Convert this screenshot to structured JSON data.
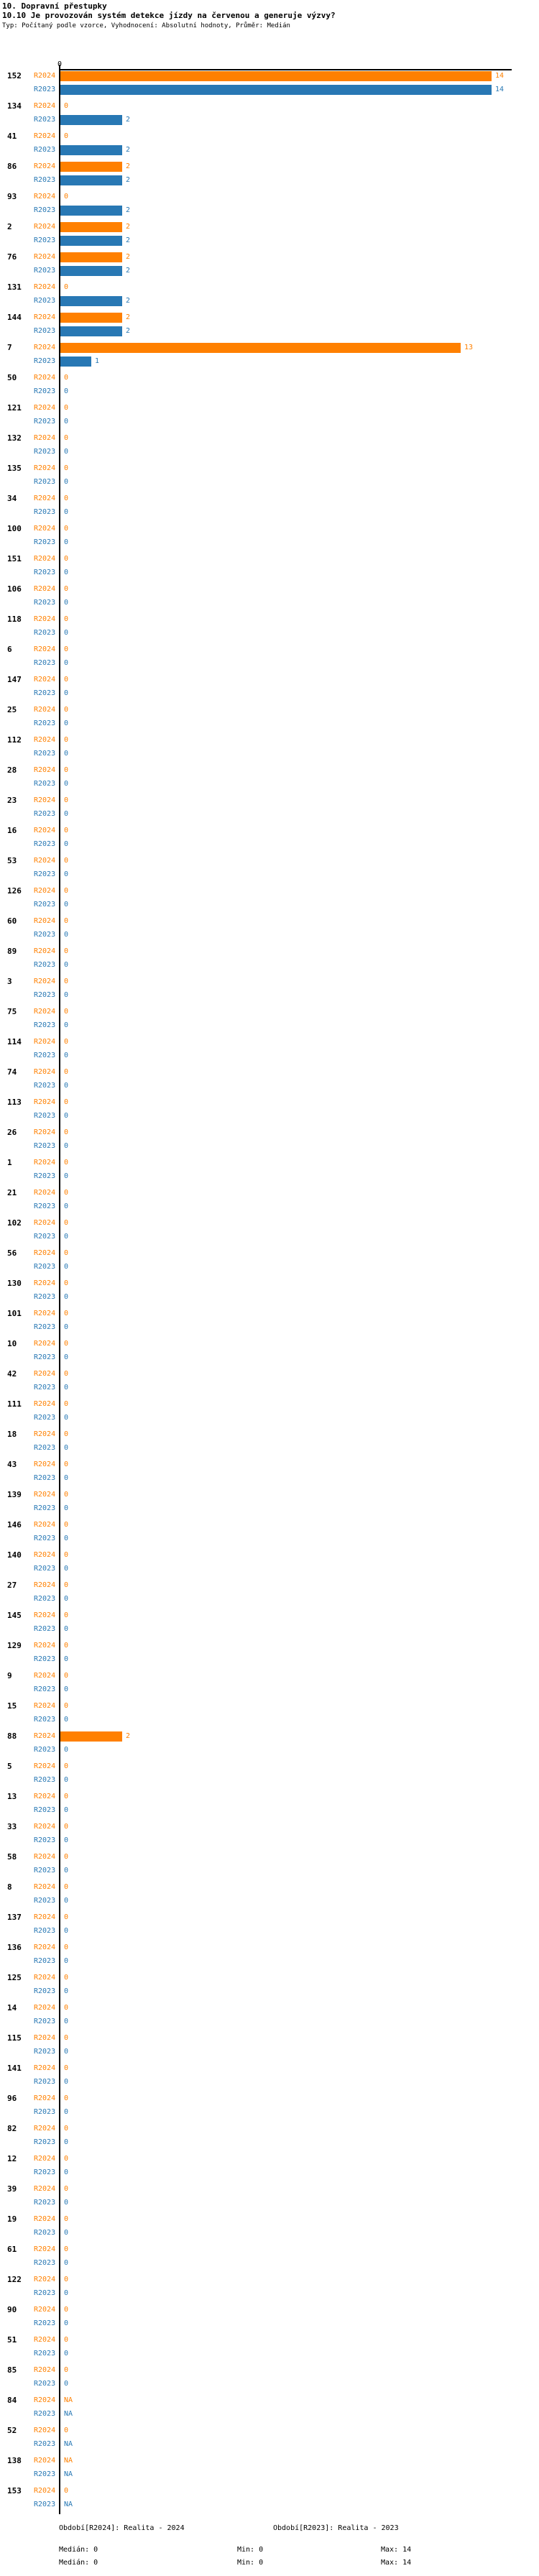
{
  "header": {
    "section_title": "10. Dopravní přestupky",
    "question_title": "10.10 Je provozován systém detekce jízdy na červenou a generuje výzvy?",
    "subtitle": "Typ: Počítaný podle vzorce, Vyhodnocení: Absolutní hodnoty, Průměr: Medián"
  },
  "chart_data": {
    "type": "bar",
    "orientation": "horizontal",
    "x_axis": {
      "zero_tick_label": "0",
      "min": 0,
      "max": 14,
      "grid": false
    },
    "series": [
      {
        "name": "R2024",
        "color": "#FF8000"
      },
      {
        "name": "R2023",
        "color": "#2878B4"
      }
    ],
    "rows": [
      {
        "id": "152",
        "R2024": 14,
        "R2023": 14
      },
      {
        "id": "134",
        "R2024": 0,
        "R2023": 2
      },
      {
        "id": "41",
        "R2024": 0,
        "R2023": 2
      },
      {
        "id": "86",
        "R2024": 2,
        "R2023": 2
      },
      {
        "id": "93",
        "R2024": 0,
        "R2023": 2
      },
      {
        "id": "2",
        "R2024": 2,
        "R2023": 2
      },
      {
        "id": "76",
        "R2024": 2,
        "R2023": 2
      },
      {
        "id": "131",
        "R2024": 0,
        "R2023": 2
      },
      {
        "id": "144",
        "R2024": 2,
        "R2023": 2
      },
      {
        "id": "7",
        "R2024": 13,
        "R2023": 1
      },
      {
        "id": "50",
        "R2024": 0,
        "R2023": 0
      },
      {
        "id": "121",
        "R2024": 0,
        "R2023": 0
      },
      {
        "id": "132",
        "R2024": 0,
        "R2023": 0
      },
      {
        "id": "135",
        "R2024": 0,
        "R2023": 0
      },
      {
        "id": "34",
        "R2024": 0,
        "R2023": 0
      },
      {
        "id": "100",
        "R2024": 0,
        "R2023": 0
      },
      {
        "id": "151",
        "R2024": 0,
        "R2023": 0
      },
      {
        "id": "106",
        "R2024": 0,
        "R2023": 0
      },
      {
        "id": "118",
        "R2024": 0,
        "R2023": 0
      },
      {
        "id": "6",
        "R2024": 0,
        "R2023": 0
      },
      {
        "id": "147",
        "R2024": 0,
        "R2023": 0
      },
      {
        "id": "25",
        "R2024": 0,
        "R2023": 0
      },
      {
        "id": "112",
        "R2024": 0,
        "R2023": 0
      },
      {
        "id": "28",
        "R2024": 0,
        "R2023": 0
      },
      {
        "id": "23",
        "R2024": 0,
        "R2023": 0
      },
      {
        "id": "16",
        "R2024": 0,
        "R2023": 0
      },
      {
        "id": "53",
        "R2024": 0,
        "R2023": 0
      },
      {
        "id": "126",
        "R2024": 0,
        "R2023": 0
      },
      {
        "id": "60",
        "R2024": 0,
        "R2023": 0
      },
      {
        "id": "89",
        "R2024": 0,
        "R2023": 0
      },
      {
        "id": "3",
        "R2024": 0,
        "R2023": 0
      },
      {
        "id": "75",
        "R2024": 0,
        "R2023": 0
      },
      {
        "id": "114",
        "R2024": 0,
        "R2023": 0
      },
      {
        "id": "74",
        "R2024": 0,
        "R2023": 0
      },
      {
        "id": "113",
        "R2024": 0,
        "R2023": 0
      },
      {
        "id": "26",
        "R2024": 0,
        "R2023": 0
      },
      {
        "id": "1",
        "R2024": 0,
        "R2023": 0
      },
      {
        "id": "21",
        "R2024": 0,
        "R2023": 0
      },
      {
        "id": "102",
        "R2024": 0,
        "R2023": 0
      },
      {
        "id": "56",
        "R2024": 0,
        "R2023": 0
      },
      {
        "id": "130",
        "R2024": 0,
        "R2023": 0
      },
      {
        "id": "101",
        "R2024": 0,
        "R2023": 0
      },
      {
        "id": "10",
        "R2024": 0,
        "R2023": 0
      },
      {
        "id": "42",
        "R2024": 0,
        "R2023": 0
      },
      {
        "id": "111",
        "R2024": 0,
        "R2023": 0
      },
      {
        "id": "18",
        "R2024": 0,
        "R2023": 0
      },
      {
        "id": "43",
        "R2024": 0,
        "R2023": 0
      },
      {
        "id": "139",
        "R2024": 0,
        "R2023": 0
      },
      {
        "id": "146",
        "R2024": 0,
        "R2023": 0
      },
      {
        "id": "140",
        "R2024": 0,
        "R2023": 0
      },
      {
        "id": "27",
        "R2024": 0,
        "R2023": 0
      },
      {
        "id": "145",
        "R2024": 0,
        "R2023": 0
      },
      {
        "id": "129",
        "R2024": 0,
        "R2023": 0
      },
      {
        "id": "9",
        "R2024": 0,
        "R2023": 0
      },
      {
        "id": "15",
        "R2024": 0,
        "R2023": 0
      },
      {
        "id": "88",
        "R2024": 2,
        "R2023": 0
      },
      {
        "id": "5",
        "R2024": 0,
        "R2023": 0
      },
      {
        "id": "13",
        "R2024": 0,
        "R2023": 0
      },
      {
        "id": "33",
        "R2024": 0,
        "R2023": 0
      },
      {
        "id": "58",
        "R2024": 0,
        "R2023": 0
      },
      {
        "id": "8",
        "R2024": 0,
        "R2023": 0
      },
      {
        "id": "137",
        "R2024": 0,
        "R2023": 0
      },
      {
        "id": "136",
        "R2024": 0,
        "R2023": 0
      },
      {
        "id": "125",
        "R2024": 0,
        "R2023": 0
      },
      {
        "id": "14",
        "R2024": 0,
        "R2023": 0
      },
      {
        "id": "115",
        "R2024": 0,
        "R2023": 0
      },
      {
        "id": "141",
        "R2024": 0,
        "R2023": 0
      },
      {
        "id": "96",
        "R2024": 0,
        "R2023": 0
      },
      {
        "id": "82",
        "R2024": 0,
        "R2023": 0
      },
      {
        "id": "12",
        "R2024": 0,
        "R2023": 0
      },
      {
        "id": "39",
        "R2024": 0,
        "R2023": 0
      },
      {
        "id": "19",
        "R2024": 0,
        "R2023": 0
      },
      {
        "id": "61",
        "R2024": 0,
        "R2023": 0
      },
      {
        "id": "122",
        "R2024": 0,
        "R2023": 0
      },
      {
        "id": "90",
        "R2024": 0,
        "R2023": 0
      },
      {
        "id": "51",
        "R2024": 0,
        "R2023": 0
      },
      {
        "id": "85",
        "R2024": 0,
        "R2023": 0
      },
      {
        "id": "84",
        "R2024": "NA",
        "R2023": "NA"
      },
      {
        "id": "52",
        "R2024": 0,
        "R2023": "NA"
      },
      {
        "id": "138",
        "R2024": "NA",
        "R2023": "NA"
      },
      {
        "id": "153",
        "R2024": 0,
        "R2023": "NA"
      }
    ]
  },
  "legend": {
    "series": [
      {
        "label": "Období[R2024]: Realita - 2024",
        "color": "#FF8000",
        "stats": {
          "median": "Medián: 0",
          "min": "Min: 0",
          "max": "Max: 14"
        }
      },
      {
        "label": "Období[R2023]: Realita - 2023",
        "color": "#2878B4",
        "stats": {
          "median": "Medián: 0",
          "min": "Min: 0",
          "max": "Max: 14"
        }
      }
    ]
  }
}
